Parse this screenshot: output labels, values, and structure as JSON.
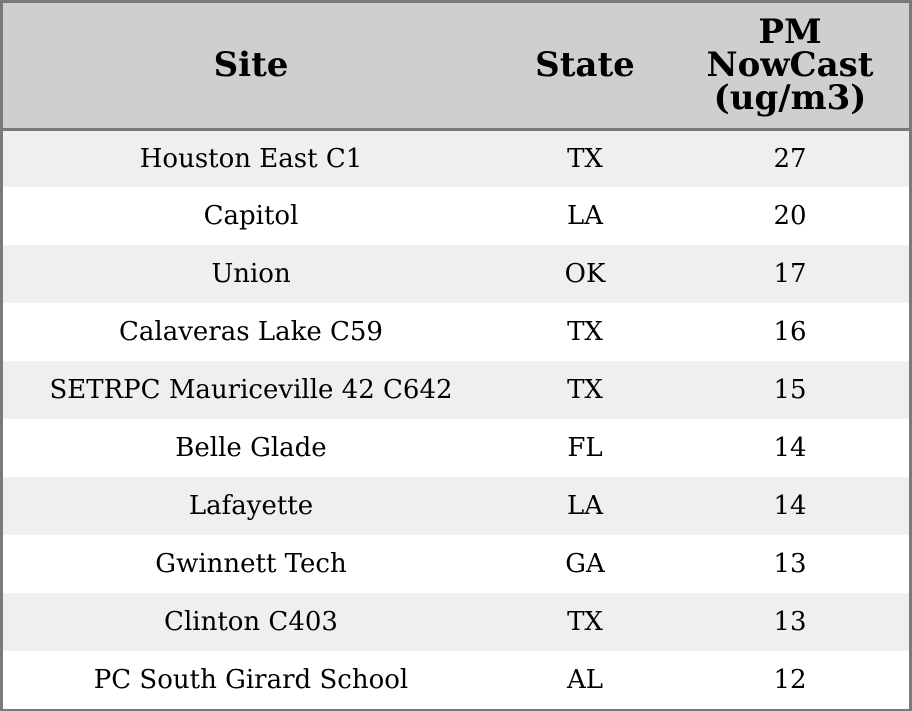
{
  "chart_data": {
    "type": "table",
    "columns": [
      "Site",
      "State",
      "PM\nNowCast\n(ug/m3)"
    ],
    "rows": [
      {
        "site": "Houston East C1",
        "state": "TX",
        "pm": 27
      },
      {
        "site": "Capitol",
        "state": "LA",
        "pm": 20
      },
      {
        "site": "Union",
        "state": "OK",
        "pm": 17
      },
      {
        "site": "Calaveras Lake C59",
        "state": "TX",
        "pm": 16
      },
      {
        "site": "SETRPC Mauriceville 42 C642",
        "state": "TX",
        "pm": 15
      },
      {
        "site": "Belle Glade",
        "state": "FL",
        "pm": 14
      },
      {
        "site": "Lafayette",
        "state": "LA",
        "pm": 14
      },
      {
        "site": "Gwinnett Tech",
        "state": "GA",
        "pm": 13
      },
      {
        "site": "Clinton C403",
        "state": "TX",
        "pm": 13
      },
      {
        "site": "PC South Girard School",
        "state": "AL",
        "pm": 12
      }
    ]
  },
  "colors": {
    "header_bg": "#cfcfcf",
    "row_alt_bg": "#efefef",
    "row_bg": "#ffffff",
    "border": "#7a7a7a",
    "text": "#000000"
  }
}
